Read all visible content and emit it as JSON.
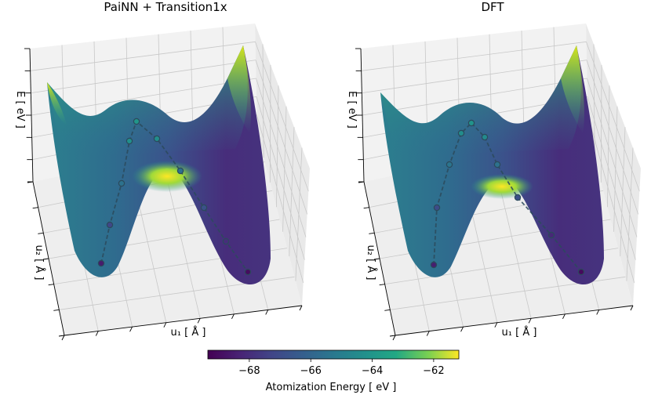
{
  "chart_data": [
    {
      "type": "surface3d",
      "title": "PaiNN + Transition1x",
      "x_label": "u₁ [ Å ]",
      "y_label": "u₂ [ Å ]",
      "z_label": "E [ eV ]",
      "path_energies": [
        -68.6,
        -67.2,
        -65.5,
        -64.3,
        -64.0,
        -64.4,
        -65.6,
        -66.8,
        -68.0,
        -69.0
      ]
    },
    {
      "type": "surface3d",
      "title": "DFT",
      "x_label": "u₁ [ Å ]",
      "y_label": "u₂ [ Å ]",
      "z_label": "E [ eV ]",
      "path_energies": [
        -68.5,
        -67.0,
        -65.4,
        -64.4,
        -64.1,
        -64.5,
        -65.5,
        -66.9,
        -68.2,
        -69.1
      ]
    }
  ],
  "colorbar": {
    "label": "Atomization Energy [ eV ]",
    "colormap": "viridis",
    "clim": [
      -69.35,
      -61.18
    ],
    "ticks": [
      {
        "value": -68,
        "label": "−68"
      },
      {
        "value": -66,
        "label": "−66"
      },
      {
        "value": -64,
        "label": "−64"
      },
      {
        "value": -62,
        "label": "−62"
      }
    ]
  }
}
